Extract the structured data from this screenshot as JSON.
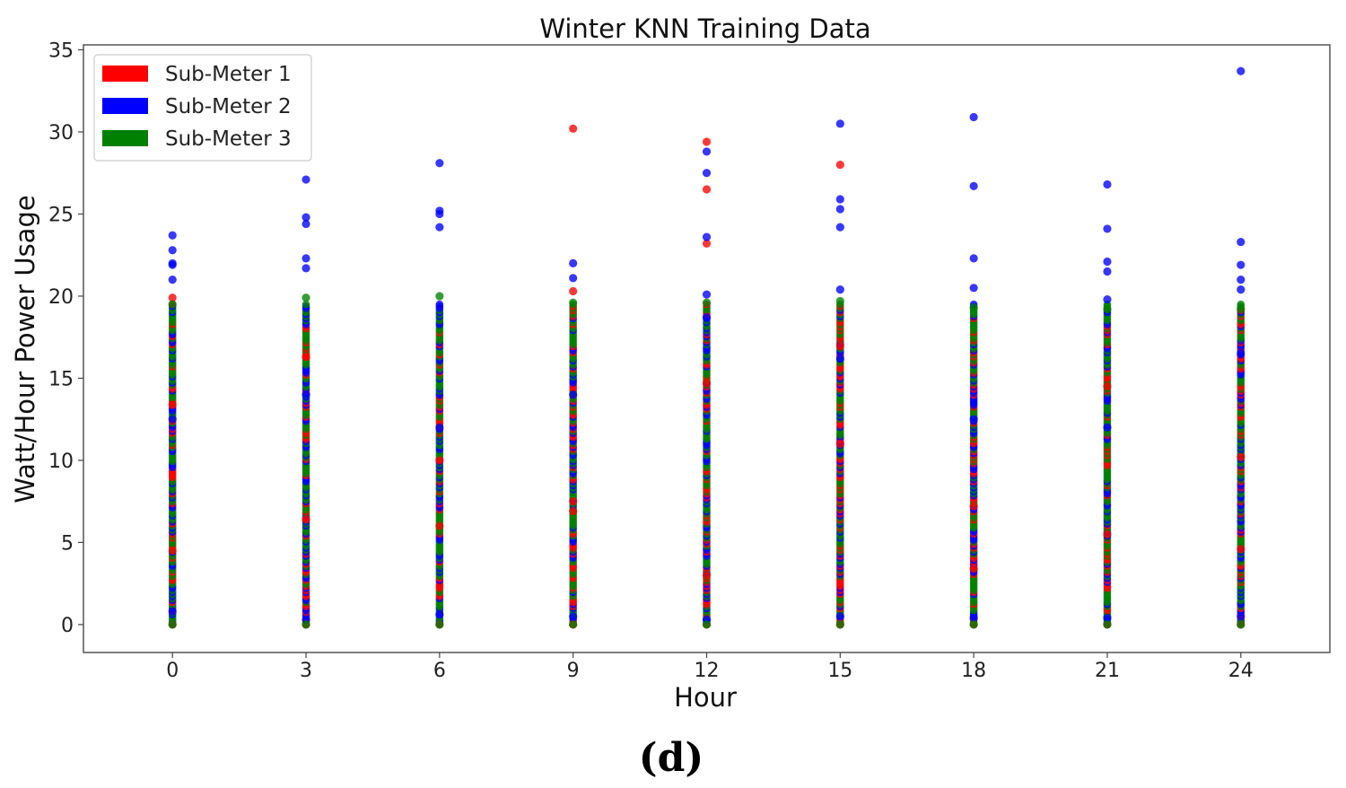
{
  "chart_data": {
    "type": "scatter",
    "title": "Winter KNN Training Data",
    "xlabel": "Hour",
    "ylabel": "Watt/Hour Power Usage",
    "panel_label": "(d)",
    "xlim": [
      -2,
      26
    ],
    "ylim": [
      -1.7,
      35.3
    ],
    "xticks": [
      0,
      3,
      6,
      9,
      12,
      15,
      18,
      21,
      24
    ],
    "yticks": [
      0,
      5,
      10,
      15,
      20,
      25,
      30,
      35
    ],
    "grid": false,
    "legend_position": "top-left",
    "series": [
      {
        "name": "Sub-Meter 1",
        "color": "#ff0000",
        "points": [
          [
            0,
            19.9
          ],
          [
            9,
            30.2
          ],
          [
            9,
            20.3
          ],
          [
            12,
            29.4
          ],
          [
            12,
            26.5
          ],
          [
            12,
            23.2
          ],
          [
            15,
            28.0
          ],
          [
            0,
            0
          ],
          [
            3,
            0
          ],
          [
            6,
            0
          ],
          [
            9,
            0
          ],
          [
            12,
            0
          ],
          [
            15,
            0
          ],
          [
            18,
            0
          ],
          [
            21,
            0
          ],
          [
            24,
            0
          ],
          [
            0,
            4.5
          ],
          [
            0,
            13.4
          ],
          [
            3,
            6.4
          ],
          [
            3,
            16.3
          ],
          [
            6,
            6.0
          ],
          [
            6,
            10.0
          ],
          [
            9,
            6.9
          ],
          [
            9,
            7.5
          ],
          [
            12,
            3.0
          ],
          [
            12,
            14.7
          ],
          [
            15,
            11.0
          ],
          [
            15,
            17.0
          ],
          [
            18,
            3.4
          ],
          [
            18,
            7.2
          ],
          [
            21,
            5.5
          ],
          [
            21,
            14.5
          ],
          [
            24,
            4.6
          ],
          [
            24,
            10.2
          ]
        ]
      },
      {
        "name": "Sub-Meter 2",
        "color": "#0000ff",
        "points": [
          [
            0,
            23.7
          ],
          [
            0,
            22.8
          ],
          [
            0,
            22.0
          ],
          [
            0,
            21.9
          ],
          [
            0,
            21.0
          ],
          [
            3,
            27.1
          ],
          [
            3,
            24.8
          ],
          [
            3,
            24.4
          ],
          [
            3,
            22.3
          ],
          [
            3,
            21.7
          ],
          [
            6,
            28.1
          ],
          [
            6,
            25.2
          ],
          [
            6,
            25.0
          ],
          [
            6,
            24.2
          ],
          [
            9,
            22.0
          ],
          [
            9,
            21.1
          ],
          [
            12,
            28.8
          ],
          [
            12,
            27.5
          ],
          [
            12,
            23.6
          ],
          [
            12,
            20.1
          ],
          [
            15,
            30.5
          ],
          [
            15,
            25.9
          ],
          [
            15,
            25.3
          ],
          [
            15,
            24.2
          ],
          [
            15,
            20.4
          ],
          [
            18,
            30.9
          ],
          [
            18,
            26.7
          ],
          [
            18,
            22.3
          ],
          [
            18,
            20.5
          ],
          [
            21,
            26.8
          ],
          [
            21,
            24.1
          ],
          [
            21,
            22.1
          ],
          [
            21,
            21.5
          ],
          [
            21,
            19.8
          ],
          [
            24,
            33.7
          ],
          [
            24,
            23.3
          ],
          [
            24,
            21.9
          ],
          [
            24,
            21.0
          ],
          [
            24,
            20.4
          ],
          [
            0,
            0.8
          ],
          [
            3,
            0.3
          ],
          [
            6,
            0.6
          ],
          [
            9,
            0.5
          ],
          [
            12,
            0.3
          ],
          [
            15,
            0.5
          ],
          [
            18,
            0.4
          ],
          [
            21,
            0.4
          ],
          [
            24,
            0.5
          ],
          [
            0,
            12.5
          ],
          [
            3,
            14.0
          ],
          [
            6,
            12.0
          ],
          [
            9,
            14.0
          ],
          [
            12,
            18.7
          ],
          [
            15,
            16.2
          ],
          [
            18,
            12.5
          ],
          [
            21,
            12.0
          ],
          [
            24,
            16.5
          ]
        ]
      },
      {
        "name": "Sub-Meter 3",
        "color": "#008000",
        "points": [
          [
            0,
            19.5
          ],
          [
            3,
            19.9
          ],
          [
            6,
            20.0
          ],
          [
            9,
            19.6
          ],
          [
            12,
            19.6
          ],
          [
            15,
            19.7
          ],
          [
            18,
            19.3
          ],
          [
            21,
            19.2
          ],
          [
            24,
            19.2
          ],
          [
            0,
            0
          ],
          [
            3,
            0
          ],
          [
            6,
            0
          ],
          [
            9,
            0
          ],
          [
            12,
            0
          ],
          [
            15,
            0
          ],
          [
            18,
            0
          ],
          [
            21,
            0
          ],
          [
            24,
            0
          ]
        ]
      }
    ],
    "column_range": {
      "note_hidden": false,
      "hours": [
        0,
        3,
        6,
        9,
        12,
        15,
        18,
        21,
        24
      ],
      "min": 0,
      "max": 19.5
    }
  }
}
